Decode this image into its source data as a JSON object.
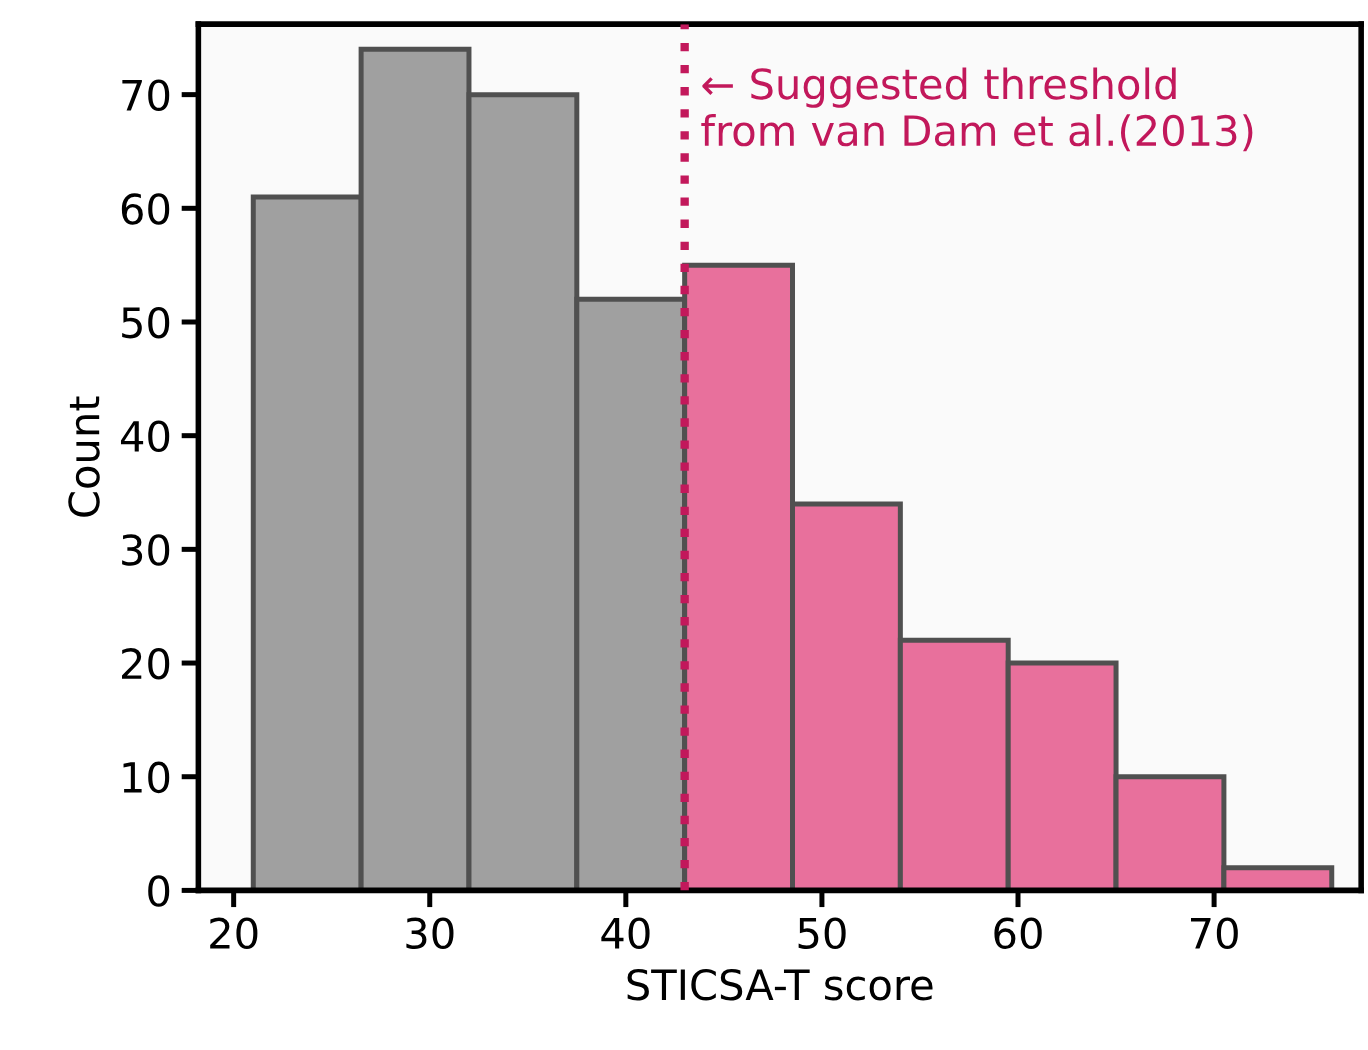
{
  "chart_data": {
    "type": "histogram",
    "xlabel": "STICSA-T score",
    "ylabel": "Count",
    "bins": [
      21,
      26.5,
      32,
      37.5,
      43,
      48.5,
      54,
      59.5,
      65,
      70.5,
      76
    ],
    "values": [
      61,
      74,
      70,
      52,
      55,
      34,
      22,
      20,
      10,
      2
    ],
    "colors": [
      "#a0a0a0",
      "#a0a0a0",
      "#a0a0a0",
      "#a0a0a0",
      "#e8709c",
      "#e8709c",
      "#e8709c",
      "#e8709c",
      "#e8709c",
      "#e8709c"
    ],
    "xlim": [
      18.2,
      77.5
    ],
    "ylim": [
      0,
      76.2
    ],
    "xticks": [
      20,
      30,
      40,
      50,
      60,
      70
    ],
    "yticks": [
      0,
      10,
      20,
      30,
      40,
      50,
      60,
      70
    ],
    "ref_lines": [
      {
        "axis": "x",
        "value": 43,
        "label": "← Suggested threshold\nfrom van Dam et al.(2013)",
        "color": "#c2185b",
        "line_style": "dotted"
      }
    ],
    "grid": false,
    "legend": false
  }
}
